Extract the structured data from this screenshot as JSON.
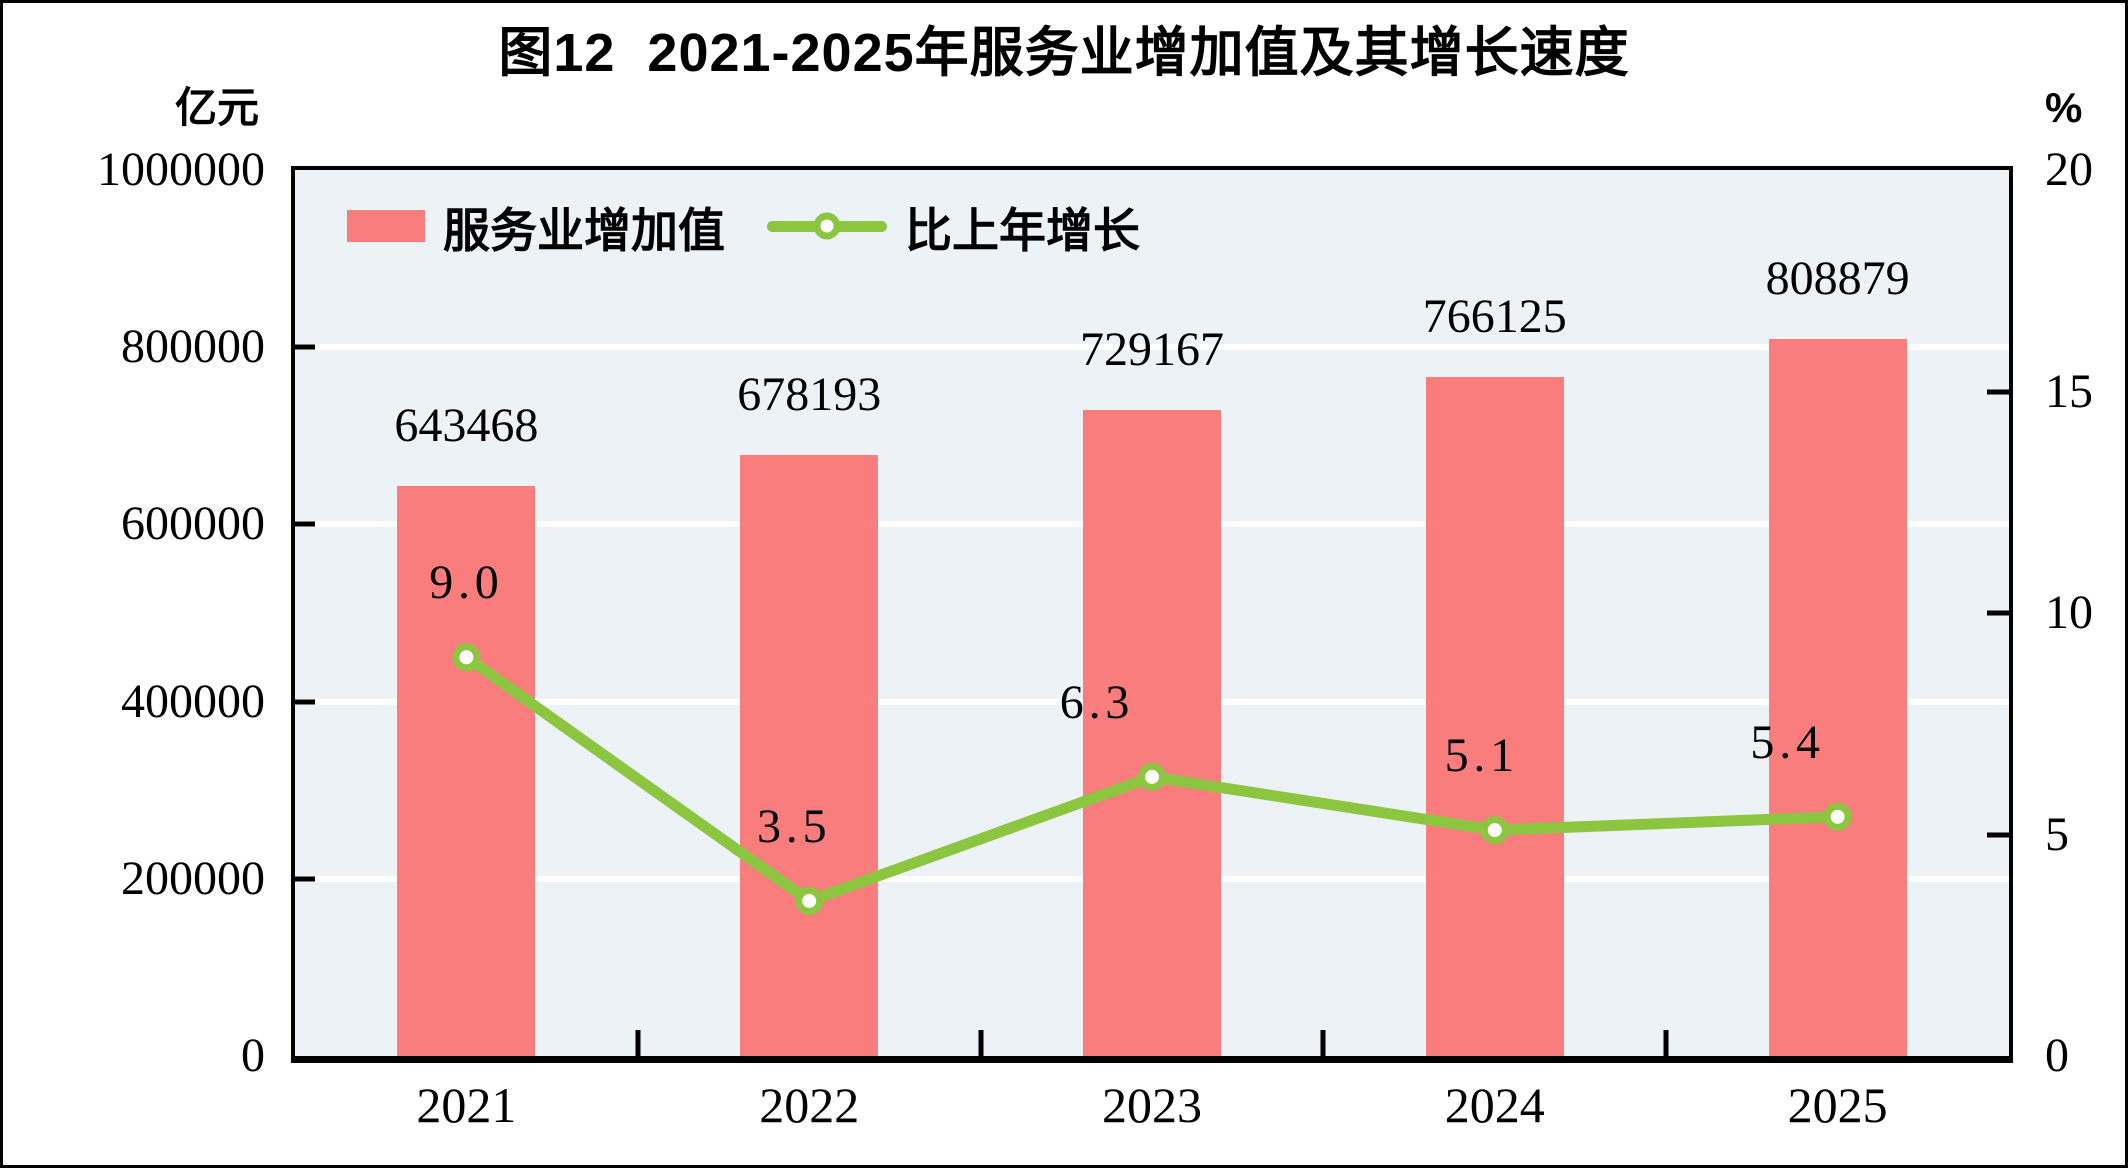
{
  "title": "图12  2021-2025年服务业增加值及其增长速度",
  "chart_data": {
    "type": "combo",
    "title": "图12  2021-2025年服务业增加值及其增长速度",
    "categories": [
      "2021",
      "2022",
      "2023",
      "2024",
      "2025"
    ],
    "series": [
      {
        "name": "服务业增加值",
        "type": "bar",
        "axis": "left",
        "color": "#FA7D7D",
        "values": [
          643468,
          678193,
          729167,
          766125,
          808879
        ],
        "labels": [
          "643468",
          "678193",
          "729167",
          "766125",
          "808879"
        ]
      },
      {
        "name": "比上年增长",
        "type": "line",
        "axis": "right",
        "color": "#8CC540",
        "marker": "open-circle",
        "values": [
          9.0,
          3.5,
          6.3,
          5.1,
          5.4
        ],
        "labels": [
          "9.0",
          "3.5",
          "6.3",
          "5.1",
          "5.4"
        ]
      }
    ],
    "axes": {
      "left": {
        "unit": "亿元",
        "min": 0,
        "max": 1000000,
        "ticks": [
          {
            "label": "1000000",
            "value": 1000000
          },
          {
            "label": "800000",
            "value": 800000
          },
          {
            "label": "600000",
            "value": 600000
          },
          {
            "label": "400000",
            "value": 400000
          },
          {
            "label": "200000",
            "value": 200000
          },
          {
            "label": "0",
            "value": 0
          }
        ]
      },
      "right": {
        "unit": "%",
        "min": 0,
        "max": 20,
        "ticks": [
          {
            "label": "20",
            "value": 20
          },
          {
            "label": "15",
            "value": 15
          },
          {
            "label": "10",
            "value": 10
          },
          {
            "label": "5",
            "value": 5
          },
          {
            "label": "0",
            "value": 0
          }
        ]
      }
    },
    "grid": "horizontal-white-lines-at-left-axis-intervals",
    "legend_position": "top-left-inside-plot",
    "plot_bg_color": "#ECF2F6",
    "gridline_color": "#FFFFFF"
  }
}
